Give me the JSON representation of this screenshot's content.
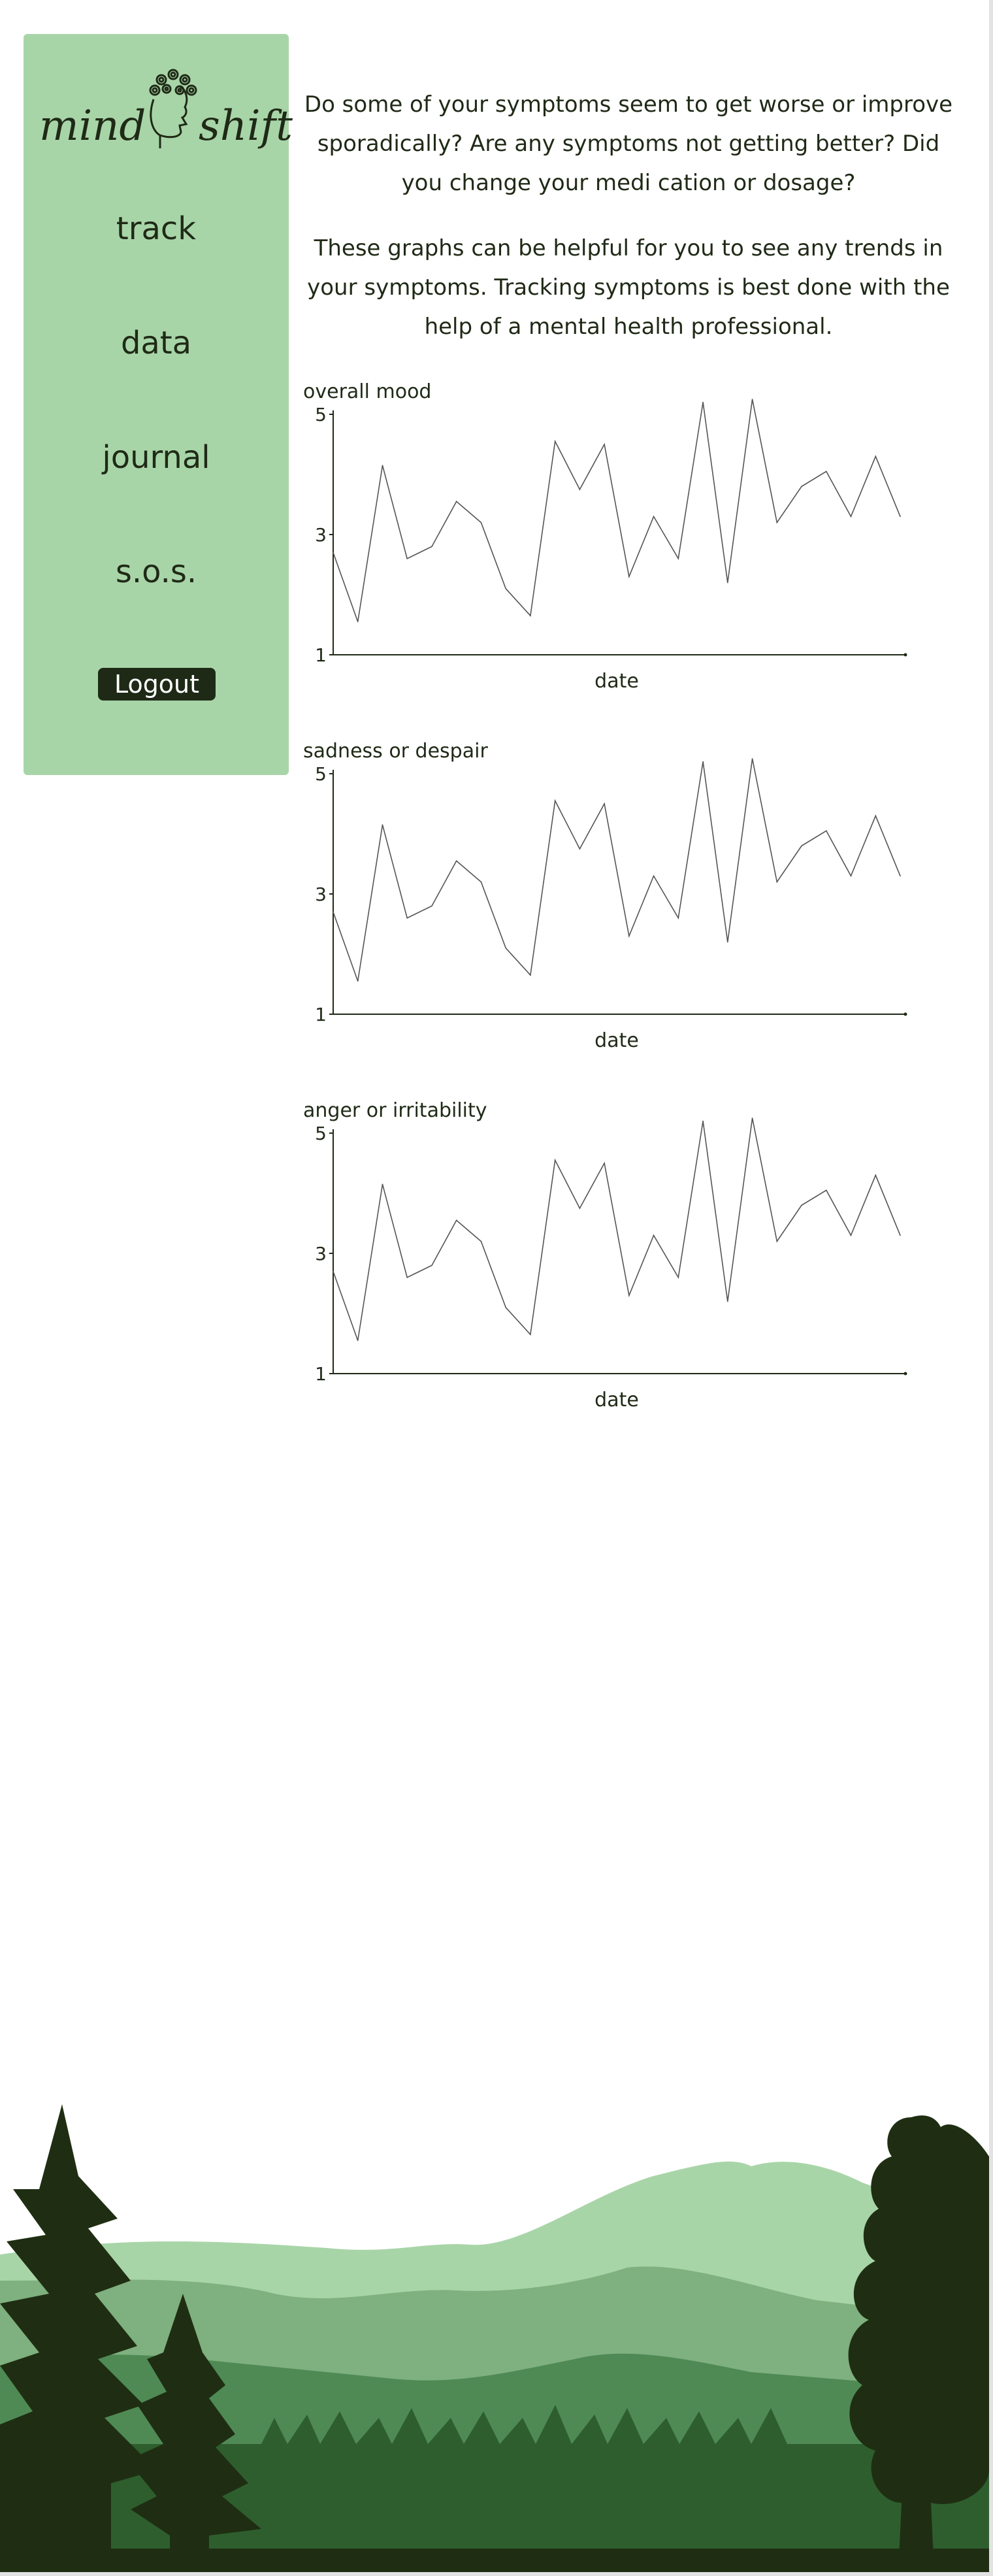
{
  "sidebar": {
    "logo": {
      "left_text": "mind",
      "right_text": "shift"
    },
    "items": [
      {
        "label": "track"
      },
      {
        "label": "data"
      },
      {
        "label": "journal"
      },
      {
        "label": "s.o.s."
      }
    ],
    "logout_label": "Logout"
  },
  "intro": {
    "paragraph1": "Do some of your symptoms seem to get worse or improve sporadically? Are any symptoms not getting better? Did you change your medi cation or dosage?",
    "paragraph2": "These graphs can be helpful for you to see any trends in your symptoms. Tracking symptoms is best done with the help of a mental health professional."
  },
  "colors": {
    "sidebar_bg": "#a8d5a8",
    "text_dark": "#1f2a16",
    "logout_bg": "#1f2a16",
    "hill_light": "#a8d5a8",
    "hill_mid": "#7fb07f",
    "hill_dark": "#4f8a55",
    "forest": "#2e5e2e",
    "trees": "#1f2e12"
  },
  "chart_data": [
    {
      "type": "line",
      "title": "overall mood",
      "xlabel": "date",
      "ylabel": "",
      "ylim": [
        1,
        5
      ],
      "yticks": [
        1,
        3,
        5
      ],
      "grid": false,
      "series": [
        {
          "values": [
            2.7,
            1.55,
            4.15,
            2.6,
            2.8,
            3.55,
            3.2,
            2.1,
            1.65,
            4.55,
            3.75,
            4.5,
            2.3,
            3.3,
            2.6,
            5.2,
            2.2,
            5.25,
            3.2,
            3.8,
            4.05,
            3.3,
            4.3,
            3.3
          ]
        }
      ]
    },
    {
      "type": "line",
      "title": "sadness or despair",
      "xlabel": "date",
      "ylabel": "",
      "ylim": [
        1,
        5
      ],
      "yticks": [
        1,
        3,
        5
      ],
      "grid": false,
      "series": [
        {
          "values": [
            2.7,
            1.55,
            4.15,
            2.6,
            2.8,
            3.55,
            3.2,
            2.1,
            1.65,
            4.55,
            3.75,
            4.5,
            2.3,
            3.3,
            2.6,
            5.2,
            2.2,
            5.25,
            3.2,
            3.8,
            4.05,
            3.3,
            4.3,
            3.3
          ]
        }
      ]
    },
    {
      "type": "line",
      "title": "anger or irritability",
      "xlabel": "date",
      "ylabel": "",
      "ylim": [
        1,
        5
      ],
      "yticks": [
        1,
        3,
        5
      ],
      "grid": false,
      "series": [
        {
          "values": [
            2.7,
            1.55,
            4.15,
            2.6,
            2.8,
            3.55,
            3.2,
            2.1,
            1.65,
            4.55,
            3.75,
            4.5,
            2.3,
            3.3,
            2.6,
            5.2,
            2.2,
            5.25,
            3.2,
            3.8,
            4.05,
            3.3,
            4.3,
            3.3
          ]
        }
      ]
    }
  ]
}
